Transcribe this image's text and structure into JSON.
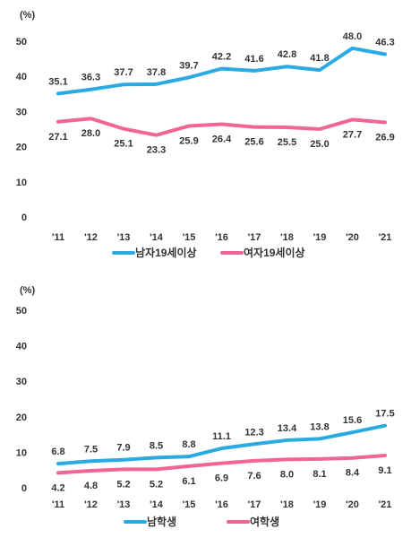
{
  "chart_data": [
    {
      "type": "line",
      "unit_label": "(%)",
      "categories": [
        "'11",
        "'12",
        "'13",
        "'14",
        "'15",
        "'16",
        "'17",
        "'18",
        "'19",
        "'20",
        "'21"
      ],
      "yticks": [
        "0",
        "10",
        "20",
        "30",
        "40",
        "50"
      ],
      "ylim": [
        0,
        50
      ],
      "grid": false,
      "legend_position": "bottom",
      "series": [
        {
          "name": "남자19세이상",
          "color": "#29ABE2",
          "values": [
            35.1,
            36.3,
            37.7,
            37.8,
            39.7,
            42.2,
            41.6,
            42.8,
            41.8,
            48.0,
            46.3
          ],
          "labels": [
            "35.1",
            "36.3",
            "37.7",
            "37.8",
            "39.7",
            "42.2",
            "41.6",
            "42.8",
            "41.8",
            "48.0",
            "46.3"
          ]
        },
        {
          "name": "여자19세이상",
          "color": "#F06595",
          "values": [
            27.1,
            28.0,
            25.1,
            23.3,
            25.9,
            26.4,
            25.6,
            25.5,
            25.0,
            27.7,
            26.9
          ],
          "labels": [
            "27.1",
            "28.0",
            "25.1",
            "23.3",
            "25.9",
            "26.4",
            "25.6",
            "25.5",
            "25.0",
            "27.7",
            "26.9"
          ]
        }
      ]
    },
    {
      "type": "line",
      "unit_label": "(%)",
      "categories": [
        "'11",
        "'12",
        "'13",
        "'14",
        "'15",
        "'16",
        "'17",
        "'18",
        "'19",
        "'20",
        "'21"
      ],
      "yticks": [
        "0",
        "10",
        "20",
        "30",
        "40",
        "50"
      ],
      "ylim": [
        0,
        50
      ],
      "grid": false,
      "legend_position": "bottom",
      "series": [
        {
          "name": "남학생",
          "color": "#29ABE2",
          "values": [
            6.8,
            7.5,
            7.9,
            8.5,
            8.8,
            11.1,
            12.3,
            13.4,
            13.8,
            15.6,
            17.5
          ],
          "labels": [
            "6.8",
            "7.5",
            "7.9",
            "8.5",
            "8.8",
            "11.1",
            "12.3",
            "13.4",
            "13.8",
            "15.6",
            "17.5"
          ]
        },
        {
          "name": "여학생",
          "color": "#F06595",
          "values": [
            4.2,
            4.8,
            5.2,
            5.2,
            6.1,
            6.9,
            7.6,
            8.0,
            8.1,
            8.4,
            9.1
          ],
          "labels": [
            "4.2",
            "4.8",
            "5.2",
            "5.2",
            "6.1",
            "6.9",
            "7.6",
            "8.0",
            "8.1",
            "8.4",
            "9.1"
          ]
        }
      ]
    }
  ]
}
